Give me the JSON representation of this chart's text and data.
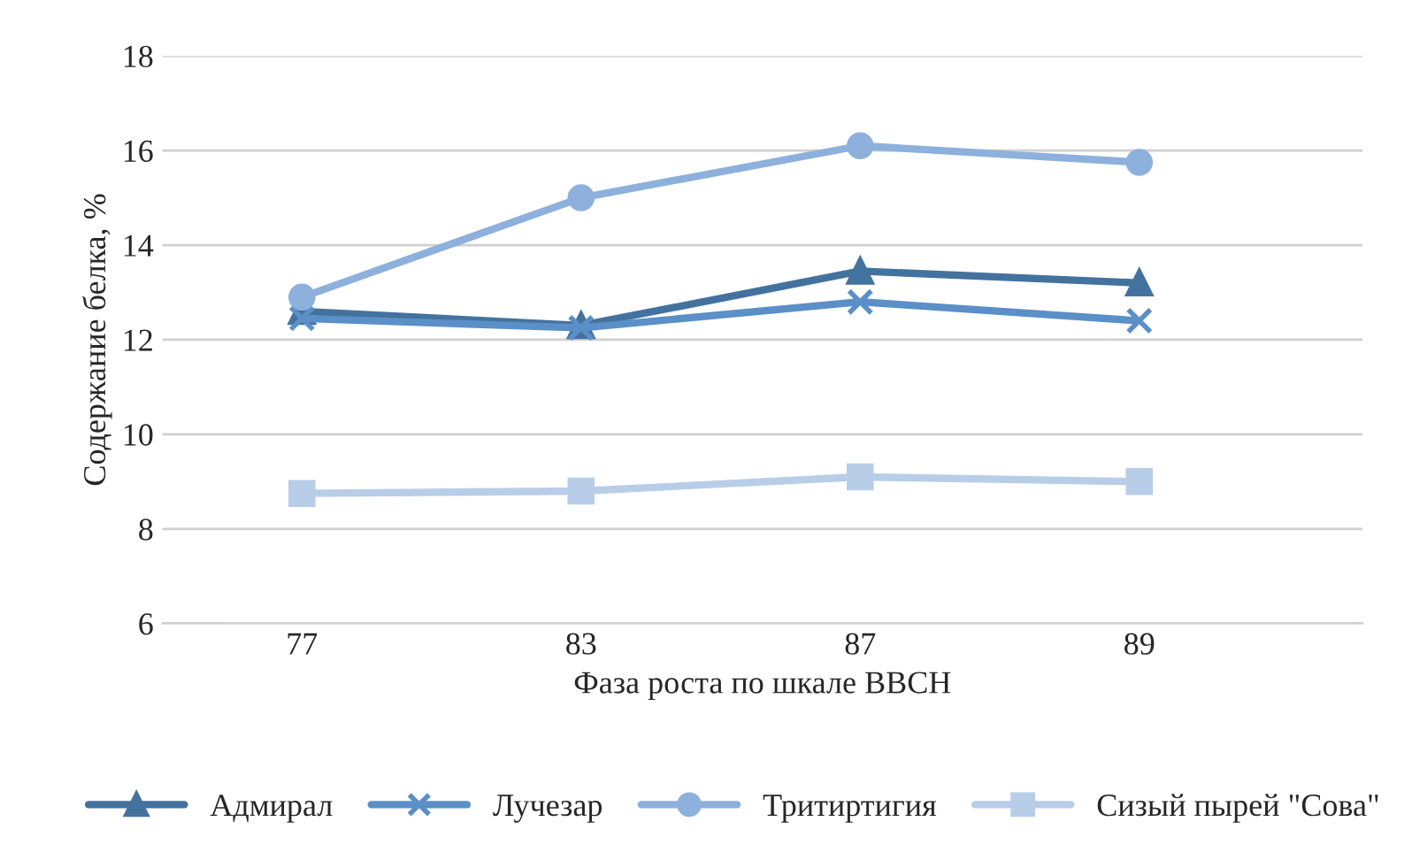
{
  "chart_data": {
    "type": "line",
    "xlabel": "Фаза роста по шкале BBCH",
    "ylabel": "Содержание белка, %",
    "categories": [
      "77",
      "83",
      "87",
      "89"
    ],
    "series": [
      {
        "name": "Адмирал",
        "color": "#44729f",
        "marker": "triangle",
        "values": [
          12.6,
          12.3,
          13.45,
          13.2
        ]
      },
      {
        "name": "Лучезар",
        "color": "#5b8fc7",
        "marker": "cross",
        "values": [
          12.45,
          12.25,
          12.8,
          12.4
        ]
      },
      {
        "name": "Тритиртигия",
        "color": "#8db0dd",
        "marker": "circle",
        "values": [
          12.9,
          15.0,
          16.1,
          15.75
        ]
      },
      {
        "name": "Сизый пырей \"Сова\"",
        "color": "#b8cde8",
        "marker": "square",
        "values": [
          8.75,
          8.8,
          9.1,
          9.0
        ]
      }
    ],
    "ylim": [
      6,
      18
    ],
    "yticks": [
      6,
      8,
      10,
      12,
      14,
      16,
      18
    ],
    "grid": "y",
    "legend": "bottom",
    "line_style": "solid"
  }
}
